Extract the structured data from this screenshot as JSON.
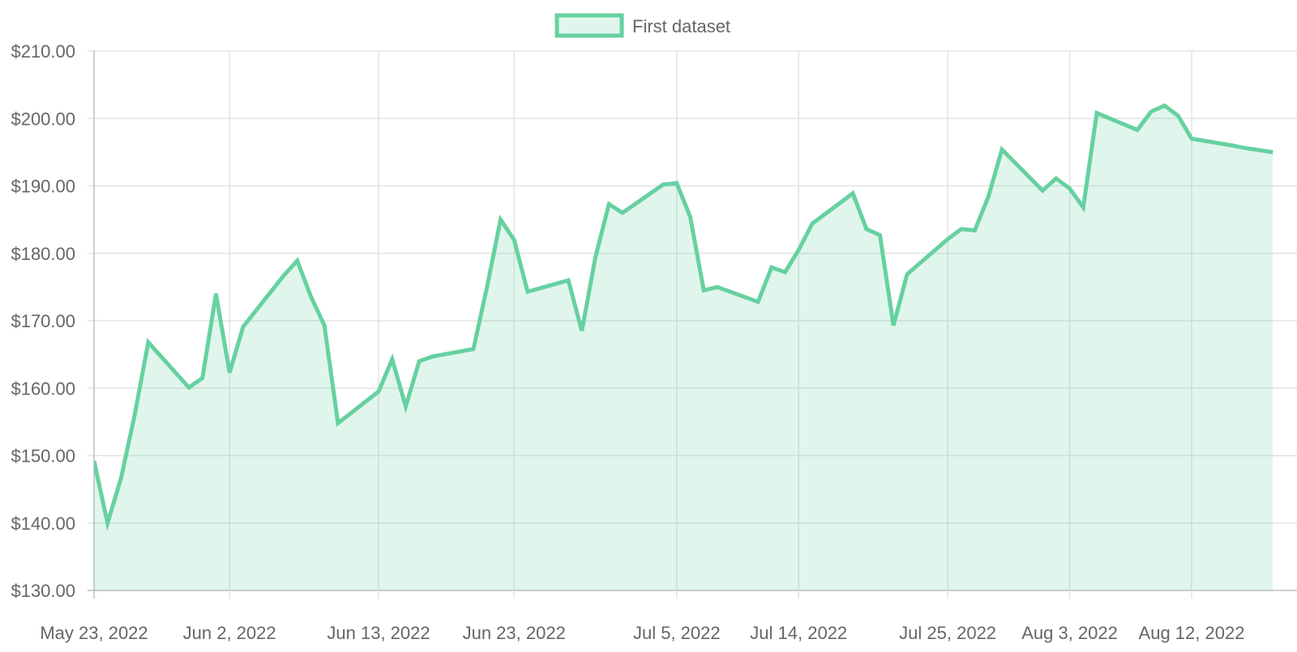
{
  "chart_data": {
    "type": "area",
    "legend": {
      "position": "top",
      "items": [
        {
          "label": "First dataset",
          "color": "#66d1a0"
        }
      ]
    },
    "grid": true,
    "colors": {
      "line": "#66d1a0",
      "fill": "rgba(102, 209, 160, 0.2)",
      "grid": "#e3e3e3",
      "axis": "#bdbdbd",
      "text": "#666666"
    },
    "y_axis": {
      "min": 130,
      "max": 210,
      "step": 10,
      "ticks": [
        "$130.00",
        "$140.00",
        "$150.00",
        "$160.00",
        "$170.00",
        "$180.00",
        "$190.00",
        "$200.00",
        "$210.00"
      ]
    },
    "x_axis": {
      "type": "date",
      "ticks": [
        {
          "date": "2022-05-23",
          "label": "May 23, 2022"
        },
        {
          "date": "2022-06-02",
          "label": "Jun 2, 2022"
        },
        {
          "date": "2022-06-13",
          "label": "Jun 13, 2022"
        },
        {
          "date": "2022-06-23",
          "label": "Jun 23, 2022"
        },
        {
          "date": "2022-07-05",
          "label": "Jul 5, 2022"
        },
        {
          "date": "2022-07-14",
          "label": "Jul 14, 2022"
        },
        {
          "date": "2022-07-25",
          "label": "Jul 25, 2022"
        },
        {
          "date": "2022-08-03",
          "label": "Aug 3, 2022"
        },
        {
          "date": "2022-08-12",
          "label": "Aug 12, 2022"
        }
      ]
    },
    "series": [
      {
        "name": "First dataset",
        "x": [
          "2022-05-23",
          "2022-05-24",
          "2022-05-25",
          "2022-05-26",
          "2022-05-27",
          "2022-05-30",
          "2022-05-31",
          "2022-06-01",
          "2022-06-02",
          "2022-06-03",
          "2022-06-06",
          "2022-06-07",
          "2022-06-08",
          "2022-06-09",
          "2022-06-10",
          "2022-06-13",
          "2022-06-14",
          "2022-06-15",
          "2022-06-16",
          "2022-06-17",
          "2022-06-20",
          "2022-06-21",
          "2022-06-22",
          "2022-06-23",
          "2022-06-24",
          "2022-06-27",
          "2022-06-28",
          "2022-06-29",
          "2022-06-30",
          "2022-07-01",
          "2022-07-04",
          "2022-07-05",
          "2022-07-06",
          "2022-07-07",
          "2022-07-08",
          "2022-07-11",
          "2022-07-12",
          "2022-07-13",
          "2022-07-14",
          "2022-07-15",
          "2022-07-18",
          "2022-07-19",
          "2022-07-20",
          "2022-07-21",
          "2022-07-22",
          "2022-07-25",
          "2022-07-26",
          "2022-07-27",
          "2022-07-28",
          "2022-07-29",
          "2022-08-01",
          "2022-08-02",
          "2022-08-03",
          "2022-08-04",
          "2022-08-05",
          "2022-08-08",
          "2022-08-09",
          "2022-08-10",
          "2022-08-11",
          "2022-08-12",
          "2022-08-15",
          "2022-08-16",
          "2022-08-17",
          "2022-08-18"
        ],
        "y": [
          149.2,
          140.0,
          146.7,
          156.0,
          166.8,
          160.1,
          161.5,
          174.0,
          162.3,
          169.1,
          176.7,
          178.9,
          173.6,
          169.3,
          154.8,
          159.5,
          164.3,
          157.3,
          164.0,
          164.7,
          165.8,
          175.0,
          185.0,
          182.0,
          174.3,
          176.0,
          168.5,
          179.4,
          187.3,
          186.0,
          190.2,
          190.4,
          185.4,
          174.5,
          175.0,
          172.8,
          177.9,
          177.2,
          180.5,
          184.4,
          188.9,
          183.6,
          182.7,
          169.3,
          176.9,
          182.1,
          183.6,
          183.4,
          188.4,
          195.4,
          189.3,
          191.1,
          189.6,
          186.8,
          200.8,
          198.3,
          201.0,
          201.9,
          200.4,
          197.0,
          196.0,
          195.6,
          195.3,
          195.0
        ]
      }
    ]
  }
}
